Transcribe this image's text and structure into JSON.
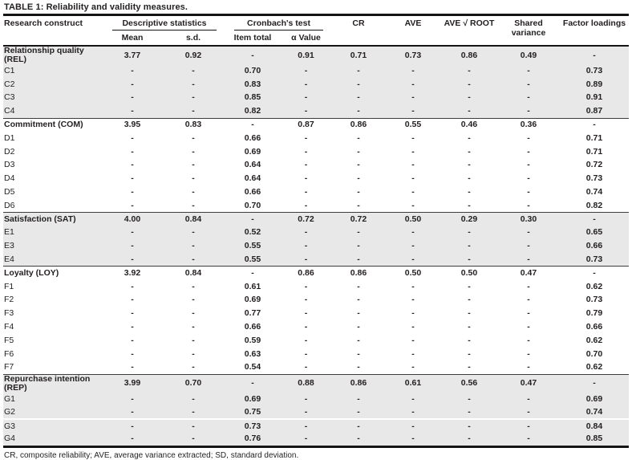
{
  "title": "TABLE 1: Reliability and validity measures.",
  "footnote": "CR, composite reliability; AVE, average variance extracted; SD, standard deviation.",
  "colors": {
    "shaded_row": "#e8e8e8",
    "text": "#231f20",
    "rule": "#151515"
  },
  "header": {
    "construct": "Research construct",
    "groups": [
      {
        "label": "Descriptive statistics",
        "children": [
          "Mean",
          "s.d."
        ]
      },
      {
        "label": "Cronbach's test",
        "children": [
          "Item total",
          "α Value"
        ]
      }
    ],
    "singles": [
      "CR",
      "AVE",
      "AVE √ ROOT",
      "Shared variance",
      "Factor loadings"
    ]
  },
  "rows": [
    {
      "label": "Relationship quality (REL)",
      "type": "construct",
      "shaded": true,
      "section_start": false,
      "gap_above": false,
      "mean": "3.77",
      "sd": "0.92",
      "item_total": "-",
      "alpha": "0.91",
      "cr": "0.71",
      "ave": "0.73",
      "ave_root": "0.86",
      "shared_variance": "0.49",
      "factor_loading": "-"
    },
    {
      "label": "C1",
      "type": "item",
      "shaded": true,
      "section_start": false,
      "gap_above": false,
      "mean": "-",
      "sd": "-",
      "item_total": "0.70",
      "alpha": "-",
      "cr": "-",
      "ave": "-",
      "ave_root": "-",
      "shared_variance": "-",
      "factor_loading": "0.73"
    },
    {
      "label": "C2",
      "type": "item",
      "shaded": true,
      "section_start": false,
      "gap_above": false,
      "mean": "-",
      "sd": "-",
      "item_total": "0.83",
      "alpha": "-",
      "cr": "-",
      "ave": "-",
      "ave_root": "-",
      "shared_variance": "-",
      "factor_loading": "0.89"
    },
    {
      "label": "C3",
      "type": "item",
      "shaded": true,
      "section_start": false,
      "gap_above": false,
      "mean": "-",
      "sd": "-",
      "item_total": "0.85",
      "alpha": "-",
      "cr": "-",
      "ave": "-",
      "ave_root": "-",
      "shared_variance": "-",
      "factor_loading": "0.91"
    },
    {
      "label": "C4",
      "type": "item",
      "shaded": true,
      "section_start": false,
      "gap_above": false,
      "mean": "-",
      "sd": "-",
      "item_total": "0.82",
      "alpha": "-",
      "cr": "-",
      "ave": "-",
      "ave_root": "-",
      "shared_variance": "-",
      "factor_loading": "0.87"
    },
    {
      "label": "Commitment (COM)",
      "type": "construct",
      "shaded": false,
      "section_start": true,
      "gap_above": false,
      "mean": "3.95",
      "sd": "0.83",
      "item_total": "-",
      "alpha": "0.87",
      "cr": "0.86",
      "ave": "0.55",
      "ave_root": "0.46",
      "shared_variance": "0.36",
      "factor_loading": "-"
    },
    {
      "label": "D1",
      "type": "item",
      "shaded": false,
      "section_start": false,
      "gap_above": false,
      "mean": "-",
      "sd": "-",
      "item_total": "0.66",
      "alpha": "-",
      "cr": "-",
      "ave": "-",
      "ave_root": "-",
      "shared_variance": "-",
      "factor_loading": "0.71"
    },
    {
      "label": "D2",
      "type": "item",
      "shaded": false,
      "section_start": false,
      "gap_above": false,
      "mean": "-",
      "sd": "-",
      "item_total": "0.69",
      "alpha": "-",
      "cr": "-",
      "ave": "-",
      "ave_root": "-",
      "shared_variance": "-",
      "factor_loading": "0.71"
    },
    {
      "label": "D3",
      "type": "item",
      "shaded": false,
      "section_start": false,
      "gap_above": false,
      "mean": "-",
      "sd": "-",
      "item_total": "0.64",
      "alpha": "-",
      "cr": "-",
      "ave": "-",
      "ave_root": "-",
      "shared_variance": "-",
      "factor_loading": "0.72"
    },
    {
      "label": "D4",
      "type": "item",
      "shaded": false,
      "section_start": false,
      "gap_above": false,
      "mean": "-",
      "sd": "-",
      "item_total": "0.64",
      "alpha": "-",
      "cr": "-",
      "ave": "-",
      "ave_root": "-",
      "shared_variance": "-",
      "factor_loading": "0.73"
    },
    {
      "label": "D5",
      "type": "item",
      "shaded": false,
      "section_start": false,
      "gap_above": false,
      "mean": "-",
      "sd": "-",
      "item_total": "0.66",
      "alpha": "-",
      "cr": "-",
      "ave": "-",
      "ave_root": "-",
      "shared_variance": "-",
      "factor_loading": "0.74"
    },
    {
      "label": "D6",
      "type": "item",
      "shaded": false,
      "section_start": false,
      "gap_above": false,
      "mean": "-",
      "sd": "-",
      "item_total": "0.70",
      "alpha": "-",
      "cr": "-",
      "ave": "-",
      "ave_root": "-",
      "shared_variance": "-",
      "factor_loading": "0.82"
    },
    {
      "label": "Satisfaction (SAT)",
      "type": "construct",
      "shaded": true,
      "section_start": true,
      "gap_above": false,
      "mean": "4.00",
      "sd": "0.84",
      "item_total": "-",
      "alpha": "0.72",
      "cr": "0.72",
      "ave": "0.50",
      "ave_root": "0.29",
      "shared_variance": "0.30",
      "factor_loading": "-"
    },
    {
      "label": "E1",
      "type": "item",
      "shaded": true,
      "section_start": false,
      "gap_above": false,
      "mean": "-",
      "sd": "-",
      "item_total": "0.52",
      "alpha": "-",
      "cr": "-",
      "ave": "-",
      "ave_root": "-",
      "shared_variance": "-",
      "factor_loading": "0.65"
    },
    {
      "label": "E3",
      "type": "item",
      "shaded": true,
      "section_start": false,
      "gap_above": false,
      "mean": "-",
      "sd": "-",
      "item_total": "0.55",
      "alpha": "-",
      "cr": "-",
      "ave": "-",
      "ave_root": "-",
      "shared_variance": "-",
      "factor_loading": "0.66"
    },
    {
      "label": "E4",
      "type": "item",
      "shaded": true,
      "section_start": false,
      "gap_above": false,
      "mean": "-",
      "sd": "-",
      "item_total": "0.55",
      "alpha": "-",
      "cr": "-",
      "ave": "-",
      "ave_root": "-",
      "shared_variance": "-",
      "factor_loading": "0.73"
    },
    {
      "label": "Loyalty (LOY)",
      "type": "construct",
      "shaded": false,
      "section_start": true,
      "gap_above": false,
      "mean": "3.92",
      "sd": "0.84",
      "item_total": "-",
      "alpha": "0.86",
      "cr": "0.86",
      "ave": "0.50",
      "ave_root": "0.50",
      "shared_variance": "0.47",
      "factor_loading": "-"
    },
    {
      "label": "F1",
      "type": "item",
      "shaded": false,
      "section_start": false,
      "gap_above": false,
      "mean": "-",
      "sd": "-",
      "item_total": "0.61",
      "alpha": "-",
      "cr": "-",
      "ave": "-",
      "ave_root": "-",
      "shared_variance": "-",
      "factor_loading": "0.62"
    },
    {
      "label": "F2",
      "type": "item",
      "shaded": false,
      "section_start": false,
      "gap_above": false,
      "mean": "-",
      "sd": "-",
      "item_total": "0.69",
      "alpha": "-",
      "cr": "-",
      "ave": "-",
      "ave_root": "-",
      "shared_variance": "-",
      "factor_loading": "0.73"
    },
    {
      "label": "F3",
      "type": "item",
      "shaded": false,
      "section_start": false,
      "gap_above": false,
      "mean": "-",
      "sd": "-",
      "item_total": "0.77",
      "alpha": "-",
      "cr": "-",
      "ave": "-",
      "ave_root": "-",
      "shared_variance": "-",
      "factor_loading": "0.79"
    },
    {
      "label": "F4",
      "type": "item",
      "shaded": false,
      "section_start": false,
      "gap_above": false,
      "mean": "-",
      "sd": "-",
      "item_total": "0.66",
      "alpha": "-",
      "cr": "-",
      "ave": "-",
      "ave_root": "-",
      "shared_variance": "-",
      "factor_loading": "0.66"
    },
    {
      "label": "F5",
      "type": "item",
      "shaded": false,
      "section_start": false,
      "gap_above": false,
      "mean": "-",
      "sd": "-",
      "item_total": "0.59",
      "alpha": "-",
      "cr": "-",
      "ave": "-",
      "ave_root": "-",
      "shared_variance": "-",
      "factor_loading": "0.62"
    },
    {
      "label": "F6",
      "type": "item",
      "shaded": false,
      "section_start": false,
      "gap_above": false,
      "mean": "-",
      "sd": "-",
      "item_total": "0.63",
      "alpha": "-",
      "cr": "-",
      "ave": "-",
      "ave_root": "-",
      "shared_variance": "-",
      "factor_loading": "0.70"
    },
    {
      "label": "F7",
      "type": "item",
      "shaded": false,
      "section_start": false,
      "gap_above": false,
      "mean": "-",
      "sd": "-",
      "item_total": "0.54",
      "alpha": "-",
      "cr": "-",
      "ave": "-",
      "ave_root": "-",
      "shared_variance": "-",
      "factor_loading": "0.62"
    },
    {
      "label": "Repurchase intention (REP)",
      "type": "construct",
      "shaded": true,
      "section_start": true,
      "gap_above": false,
      "mean": "3.99",
      "sd": "0.70",
      "item_total": "-",
      "alpha": "0.88",
      "cr": "0.86",
      "ave": "0.61",
      "ave_root": "0.56",
      "shared_variance": "0.47",
      "factor_loading": "-"
    },
    {
      "label": "G1",
      "type": "item",
      "shaded": true,
      "section_start": false,
      "gap_above": false,
      "mean": "-",
      "sd": "-",
      "item_total": "0.69",
      "alpha": "-",
      "cr": "-",
      "ave": "-",
      "ave_root": "-",
      "shared_variance": "-",
      "factor_loading": "0.69"
    },
    {
      "label": "G2",
      "type": "item",
      "shaded": true,
      "section_start": false,
      "gap_above": false,
      "mean": "-",
      "sd": "-",
      "item_total": "0.75",
      "alpha": "-",
      "cr": "-",
      "ave": "-",
      "ave_root": "-",
      "shared_variance": "-",
      "factor_loading": "0.74"
    },
    {
      "label": "G3",
      "type": "item",
      "shaded": true,
      "section_start": false,
      "gap_above": true,
      "mean": "-",
      "sd": "-",
      "item_total": "0.73",
      "alpha": "-",
      "cr": "-",
      "ave": "-",
      "ave_root": "-",
      "shared_variance": "-",
      "factor_loading": "0.84"
    },
    {
      "label": "G4",
      "type": "item",
      "shaded": true,
      "section_start": false,
      "gap_above": false,
      "mean": "-",
      "sd": "-",
      "item_total": "0.76",
      "alpha": "-",
      "cr": "-",
      "ave": "-",
      "ave_root": "-",
      "shared_variance": "-",
      "factor_loading": "0.85"
    }
  ]
}
